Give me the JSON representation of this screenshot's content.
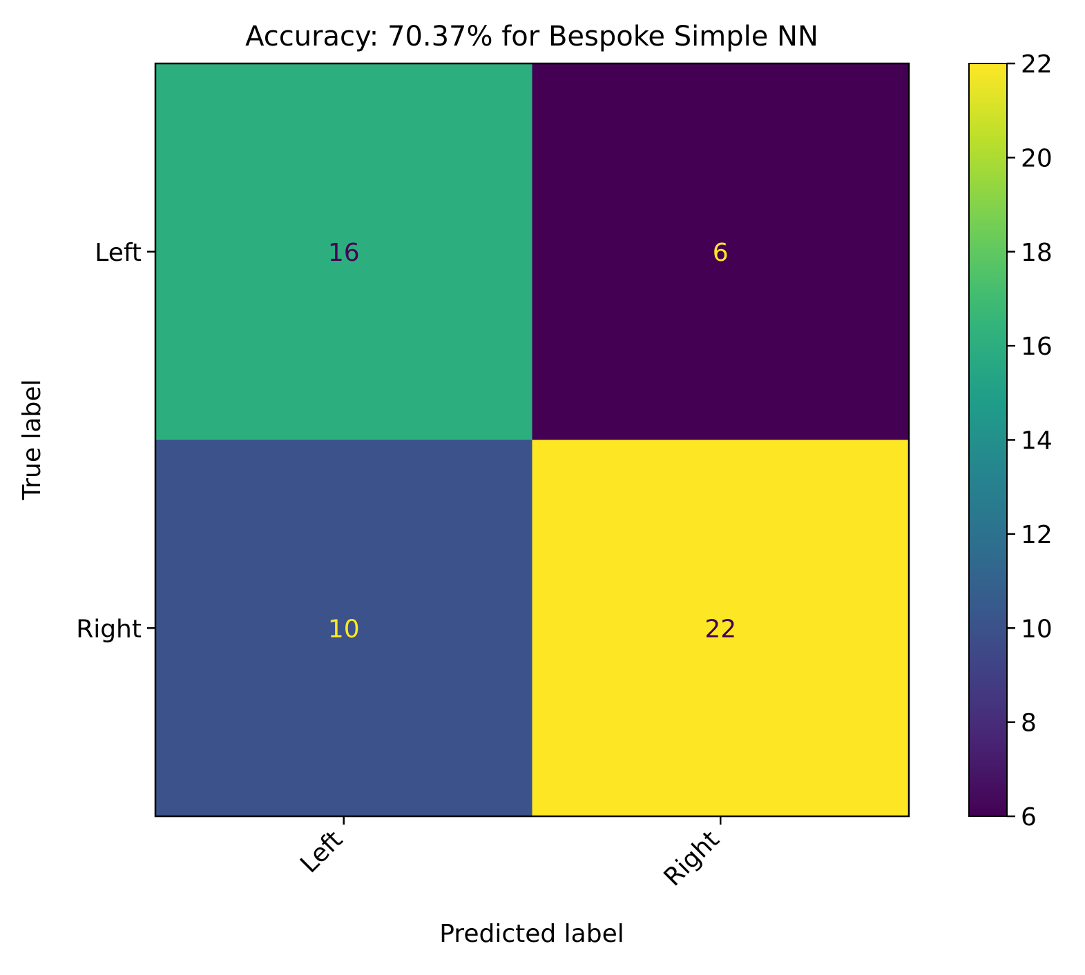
{
  "chart_data": {
    "type": "heatmap",
    "title": "Accuracy: 70.37% for Bespoke Simple NN",
    "xlabel": "Predicted label",
    "ylabel": "True label",
    "x_categories": [
      "Left",
      "Right"
    ],
    "y_categories": [
      "Left",
      "Right"
    ],
    "matrix": [
      [
        16,
        6
      ],
      [
        10,
        22
      ]
    ],
    "colormap": "viridis",
    "colorbar": {
      "range": [
        6,
        22
      ],
      "ticks": [
        6,
        8,
        10,
        12,
        14,
        16,
        18,
        20,
        22
      ]
    },
    "grid": false
  }
}
